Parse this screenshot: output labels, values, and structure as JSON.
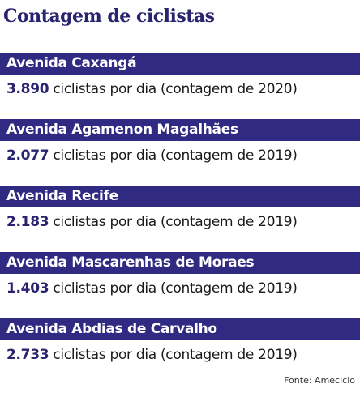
{
  "title": "Contagem de ciclistas",
  "entries": [
    {
      "avenue": "Avenida Caxangá",
      "count": "3.890",
      "description": " ciclistas por dia (contagem de 2020)"
    },
    {
      "avenue": "Avenida Agamenon Magalhães",
      "count": "2.077",
      "description": " ciclistas por dia (contagem de 2019)"
    },
    {
      "avenue": "Avenida Recife",
      "count": "2.183",
      "description": " ciclistas por dia (contagem de 2019)"
    },
    {
      "avenue": "Avenida Mascarenhas de Moraes",
      "count": "1.403",
      "description": " ciclistas por dia (contagem de 2019)"
    },
    {
      "avenue": "Avenida Abdias de Carvalho",
      "count": "2.733",
      "description": " ciclistas por dia (contagem de 2019)"
    }
  ],
  "source": "Fonte: Ameciclo",
  "colors": {
    "bar_background": "#302a82",
    "title_text": "#2a2370"
  }
}
